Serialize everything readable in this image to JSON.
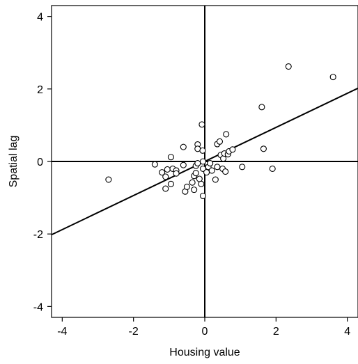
{
  "chart_data": {
    "type": "scatter",
    "title": "",
    "xlabel": "Housing value",
    "ylabel": "Spatial lag",
    "xlim": [
      -4.3,
      4.3
    ],
    "ylim": [
      -4.3,
      4.3
    ],
    "xticks": [
      -4,
      -2,
      0,
      2,
      4
    ],
    "yticks": [
      -4,
      -2,
      0,
      2,
      4
    ],
    "grid": false,
    "reference_lines": {
      "x": 0,
      "y": 0
    },
    "fit_line": {
      "slope": 0.47,
      "intercept": 0
    },
    "colors": {
      "axis": "#000000",
      "marker_fill": "#ffffff",
      "marker_stroke": "#000000"
    },
    "points": [
      {
        "x": -2.7,
        "y": -0.5
      },
      {
        "x": -1.4,
        "y": -0.08
      },
      {
        "x": -1.2,
        "y": -0.3
      },
      {
        "x": -1.1,
        "y": -0.42
      },
      {
        "x": -1.1,
        "y": -0.75
      },
      {
        "x": -1.05,
        "y": -0.22
      },
      {
        "x": -0.95,
        "y": 0.12
      },
      {
        "x": -0.95,
        "y": -0.62
      },
      {
        "x": -0.9,
        "y": -0.2
      },
      {
        "x": -0.8,
        "y": -0.25
      },
      {
        "x": -0.8,
        "y": -0.33
      },
      {
        "x": -0.6,
        "y": 0.4
      },
      {
        "x": -0.6,
        "y": -0.1
      },
      {
        "x": -0.55,
        "y": -0.83
      },
      {
        "x": -0.5,
        "y": -0.7
      },
      {
        "x": -0.35,
        "y": -0.58
      },
      {
        "x": -0.3,
        "y": -0.78
      },
      {
        "x": -0.3,
        "y": -0.4
      },
      {
        "x": -0.25,
        "y": -0.12
      },
      {
        "x": -0.25,
        "y": -0.32
      },
      {
        "x": -0.2,
        "y": 0.47
      },
      {
        "x": -0.2,
        "y": 0.35
      },
      {
        "x": -0.2,
        "y": -0.05
      },
      {
        "x": -0.15,
        "y": -0.48
      },
      {
        "x": -0.1,
        "y": -0.62
      },
      {
        "x": -0.08,
        "y": 1.02
      },
      {
        "x": -0.06,
        "y": 0.3
      },
      {
        "x": -0.05,
        "y": 0.0
      },
      {
        "x": -0.05,
        "y": -0.2
      },
      {
        "x": -0.05,
        "y": -0.95
      },
      {
        "x": 0.05,
        "y": -0.3
      },
      {
        "x": 0.1,
        "y": -0.15
      },
      {
        "x": 0.15,
        "y": -0.05
      },
      {
        "x": 0.2,
        "y": -0.25
      },
      {
        "x": 0.3,
        "y": -0.5
      },
      {
        "x": 0.35,
        "y": 0.48
      },
      {
        "x": 0.35,
        "y": -0.15
      },
      {
        "x": 0.42,
        "y": 0.55
      },
      {
        "x": 0.45,
        "y": 0.18
      },
      {
        "x": 0.5,
        "y": -0.2
      },
      {
        "x": 0.52,
        "y": 0.08
      },
      {
        "x": 0.55,
        "y": 0.22
      },
      {
        "x": 0.58,
        "y": -0.28
      },
      {
        "x": 0.6,
        "y": 0.75
      },
      {
        "x": 0.65,
        "y": 0.2
      },
      {
        "x": 0.68,
        "y": 0.28
      },
      {
        "x": 0.78,
        "y": 0.33
      },
      {
        "x": 1.05,
        "y": -0.15
      },
      {
        "x": 1.6,
        "y": 1.5
      },
      {
        "x": 1.65,
        "y": 0.35
      },
      {
        "x": 1.9,
        "y": -0.2
      },
      {
        "x": 2.35,
        "y": 2.62
      },
      {
        "x": 3.6,
        "y": 2.33
      }
    ]
  }
}
